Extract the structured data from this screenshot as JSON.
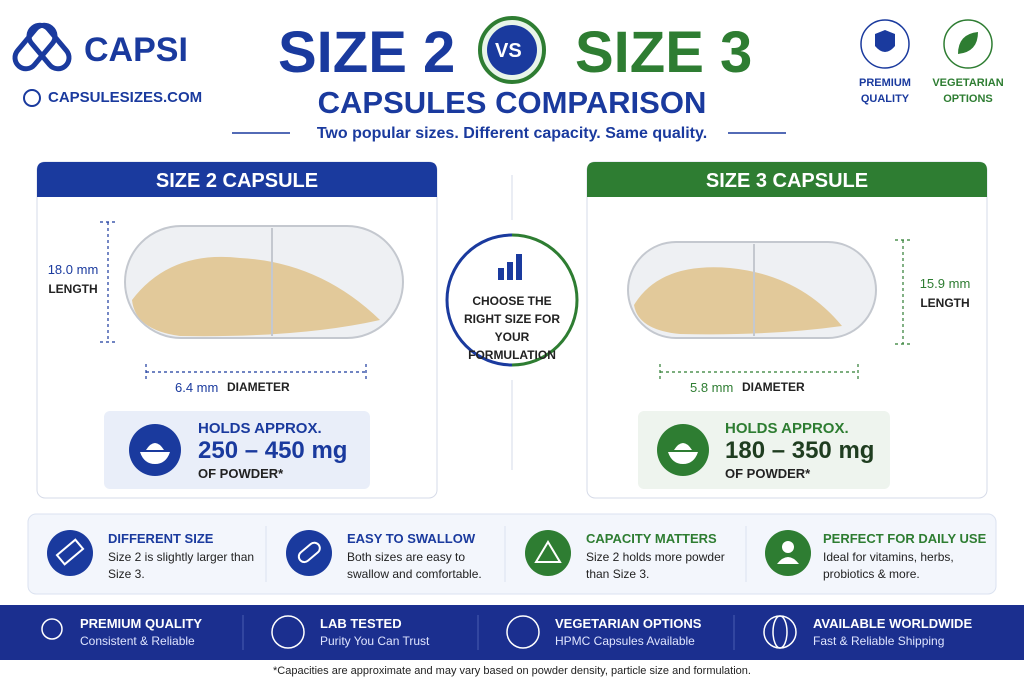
{
  "brand": {
    "name": "CAPSI",
    "website": "CAPSULESIZES.COM"
  },
  "header": {
    "title_left": "SIZE 2",
    "vs": "VS",
    "title_right": "SIZE 3",
    "subtitle": "CAPSULES COMPARISON",
    "tagline": "Two popular sizes. Different capacity. Same quality."
  },
  "badges": [
    "PREMIUM QUALITY",
    "VEGETARIAN OPTIONS"
  ],
  "panels": [
    {
      "title": "SIZE 2 CAPSULE",
      "length_value": "18.0 mm",
      "length_label": "LENGTH",
      "diameter_value": "6.4 mm",
      "diameter_label": "DIAMETER",
      "holds": "HOLDS APPROX.",
      "range": "250 – 450 mg",
      "unit": "OF POWDER*"
    },
    {
      "title": "SIZE 3 CAPSULE",
      "length_value": "15.9 mm",
      "length_label": "LENGTH",
      "diameter_value": "5.8 mm",
      "diameter_label": "DIAMETER",
      "holds": "HOLDS APPROX.",
      "range": "180 – 350 mg",
      "unit": "OF POWDER*"
    }
  ],
  "center": "CHOOSE THE RIGHT SIZE FOR YOUR FORMULATION",
  "features": [
    {
      "title": "DIFFERENT SIZE",
      "text": "Size 2 is slightly larger than Size 3."
    },
    {
      "title": "EASY TO SWALLOW",
      "text": "Both sizes are easy to swallow and comfortable."
    },
    {
      "title": "CAPACITY MATTERS",
      "text": "Size 2 holds more powder than Size 3."
    },
    {
      "title": "PERFECT FOR DAILY USE",
      "text": "Ideal for vitamins, herbs, probiotics & more."
    }
  ],
  "footer": [
    {
      "title": "PREMIUM QUALITY",
      "text": "Consistent & Reliable"
    },
    {
      "title": "LAB TESTED",
      "text": "Purity You Can Trust"
    },
    {
      "title": "VEGETARIAN OPTIONS",
      "text": "HPMC Capsules Available"
    },
    {
      "title": "AVAILABLE WORLDWIDE",
      "text": "Fast & Reliable Shipping"
    }
  ],
  "footnote": "*Capacities are approximate and may vary based on powder density, particle size and formulation."
}
